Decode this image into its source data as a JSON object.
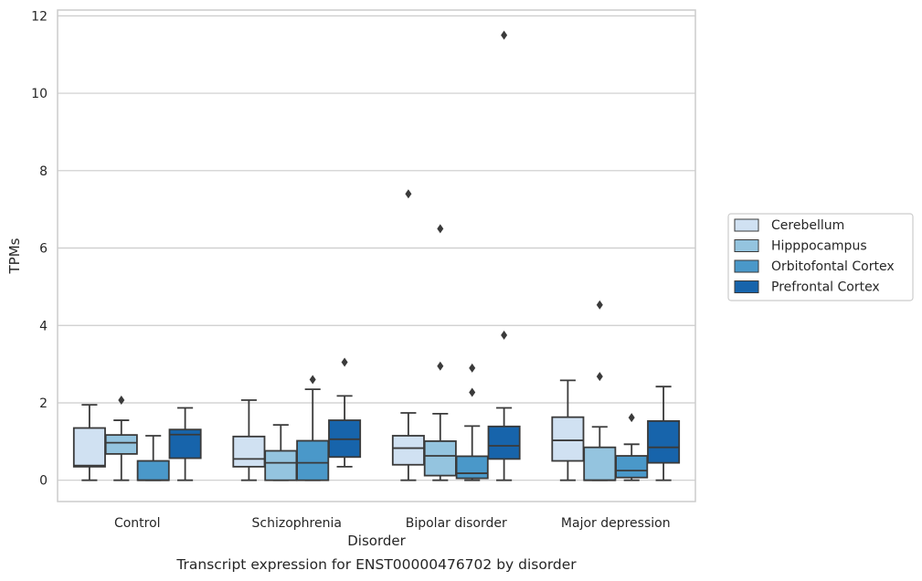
{
  "chart_data": {
    "type": "box",
    "caption": "Transcript expression for ENST00000476702 by disorder",
    "xlabel": "Disorder",
    "ylabel": "TPMs",
    "ylim": [
      -0.55,
      12.15
    ],
    "yticks": [
      0,
      2,
      4,
      6,
      8,
      10,
      12
    ],
    "grid": "horizontal",
    "legend_position": "right",
    "categories": [
      "Control",
      "Schizophrenia",
      "Bipolar disorder",
      "Major depression"
    ],
    "series": [
      {
        "name": "Cerebellum",
        "color": "#d0e1f2",
        "boxes": [
          {
            "whislo": 0.0,
            "q1": 0.35,
            "med": 0.38,
            "q3": 1.35,
            "whishi": 1.95,
            "fliers": []
          },
          {
            "whislo": 0.0,
            "q1": 0.35,
            "med": 0.55,
            "q3": 1.13,
            "whishi": 2.07,
            "fliers": []
          },
          {
            "whislo": 0.0,
            "q1": 0.4,
            "med": 0.83,
            "q3": 1.15,
            "whishi": 1.74,
            "fliers": [
              7.4
            ]
          },
          {
            "whislo": 0.0,
            "q1": 0.5,
            "med": 1.03,
            "q3": 1.63,
            "whishi": 2.58,
            "fliers": []
          }
        ]
      },
      {
        "name": "Hipppocampus",
        "color": "#94c4df",
        "boxes": [
          {
            "whislo": 0.0,
            "q1": 0.68,
            "med": 0.97,
            "q3": 1.17,
            "whishi": 1.55,
            "fliers": [
              2.07
            ]
          },
          {
            "whislo": 0.0,
            "q1": 0.0,
            "med": 0.45,
            "q3": 0.76,
            "whishi": 1.43,
            "fliers": []
          },
          {
            "whislo": 0.0,
            "q1": 0.12,
            "med": 0.63,
            "q3": 1.01,
            "whishi": 1.72,
            "fliers": [
              6.5,
              2.95
            ]
          },
          {
            "whislo": 0.0,
            "q1": 0.0,
            "med": 0.0,
            "q3": 0.85,
            "whishi": 1.38,
            "fliers": [
              4.53,
              2.68
            ]
          }
        ]
      },
      {
        "name": "Orbitofontal Cortex",
        "color": "#4a98c9",
        "boxes": [
          {
            "whislo": 0.0,
            "q1": 0.0,
            "med": 0.0,
            "q3": 0.5,
            "whishi": 1.15,
            "fliers": []
          },
          {
            "whislo": 0.0,
            "q1": 0.0,
            "med": 0.45,
            "q3": 1.02,
            "whishi": 2.35,
            "fliers": [
              2.6
            ]
          },
          {
            "whislo": 0.0,
            "q1": 0.05,
            "med": 0.18,
            "q3": 0.62,
            "whishi": 1.4,
            "fliers": [
              2.9,
              2.27
            ]
          },
          {
            "whislo": 0.0,
            "q1": 0.07,
            "med": 0.25,
            "q3": 0.63,
            "whishi": 0.93,
            "fliers": [
              1.62
            ]
          }
        ]
      },
      {
        "name": "Prefrontal Cortex",
        "color": "#1764ab",
        "boxes": [
          {
            "whislo": 0.0,
            "q1": 0.57,
            "med": 1.18,
            "q3": 1.31,
            "whishi": 1.87,
            "fliers": []
          },
          {
            "whislo": 0.35,
            "q1": 0.6,
            "med": 1.06,
            "q3": 1.55,
            "whishi": 2.18,
            "fliers": [
              3.05
            ]
          },
          {
            "whislo": 0.0,
            "q1": 0.55,
            "med": 0.89,
            "q3": 1.39,
            "whishi": 1.87,
            "fliers": [
              11.5,
              3.75
            ]
          },
          {
            "whislo": 0.0,
            "q1": 0.45,
            "med": 0.85,
            "q3": 1.53,
            "whishi": 2.42,
            "fliers": []
          }
        ]
      }
    ]
  }
}
